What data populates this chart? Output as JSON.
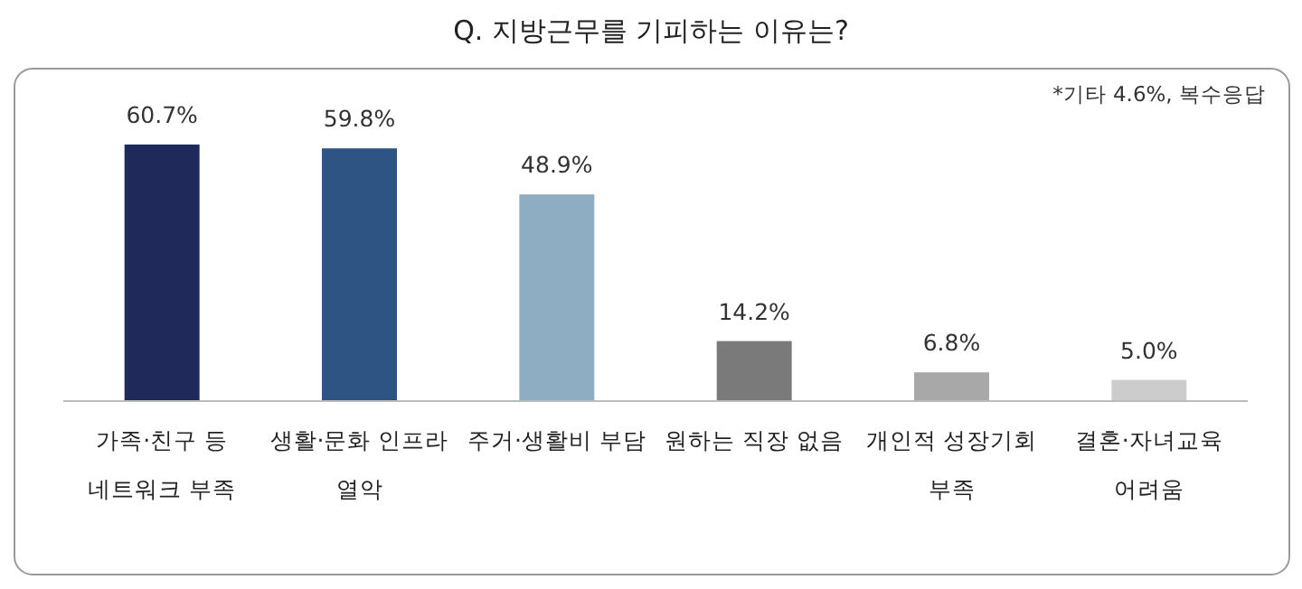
{
  "chart_data": {
    "type": "bar",
    "title": "Q. 지방근무를 기피하는 이유는?",
    "categories": [
      "가족·친구 등\n네트워크 부족",
      "생활·문화 인프라\n열악",
      "주거·생활비 부담",
      "원하는 직장 없음",
      "개인적 성장기회\n부족",
      "결혼·자녀교육\n어려움"
    ],
    "values": [
      60.7,
      59.8,
      48.9,
      14.2,
      6.8,
      5.0
    ],
    "value_labels": [
      "60.7%",
      "59.8%",
      "48.9%",
      "14.2%",
      "6.8%",
      "5.0%"
    ],
    "colors": [
      "#1f2a5a",
      "#2d5482",
      "#8fadc2",
      "#7a7a7a",
      "#a8a8a8",
      "#cccccc"
    ],
    "annotations": [
      "*기타 4.6%, 복수응답"
    ]
  }
}
